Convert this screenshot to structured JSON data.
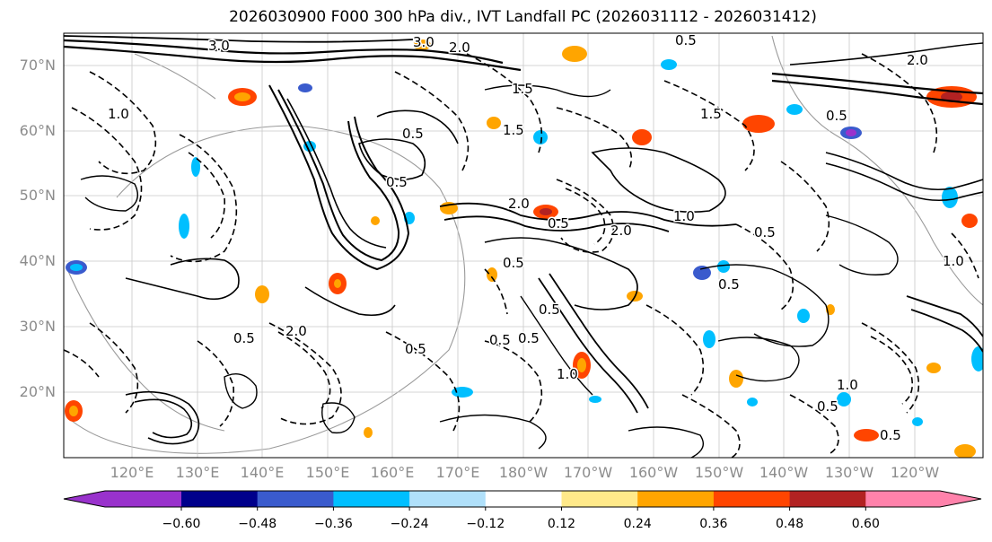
{
  "title": "2026030900 F000 300 hPa div., IVT Landfall PC (2026031112 - 2026031412)",
  "lat_labels": [
    "70°N",
    "60°N",
    "50°N",
    "40°N",
    "30°N",
    "20°N"
  ],
  "lon_labels": [
    "120°E",
    "130°E",
    "140°E",
    "150°E",
    "160°E",
    "170°E",
    "180°W",
    "170°W",
    "160°W",
    "150°W",
    "140°W",
    "130°W",
    "120°W"
  ],
  "colorbar": {
    "colors": [
      "#9932cc",
      "#00008b",
      "#3a5bcd",
      "#00bfff",
      "#b0e0fa",
      "#ffffff",
      "#ffe98a",
      "#ffa500",
      "#ff4500",
      "#b22222",
      "#ff82ab"
    ],
    "tick_labels": [
      "−0.60",
      "−0.48",
      "−0.36",
      "−0.24",
      "−0.12",
      "0.12",
      "0.24",
      "0.36",
      "0.48",
      "0.60"
    ]
  },
  "contour_labels": [
    "3.0",
    "3.0",
    "2.0",
    "0.5",
    "1.5",
    "0.5",
    "1.0",
    "1.5",
    "2.0",
    "1.5",
    "0.5",
    "0.5",
    "2.0",
    "0.5",
    "1.0",
    "2.0",
    "0.5",
    "0.5",
    "0.5",
    "0.5",
    "1.0",
    "2.0",
    "0.5",
    "0.5",
    "0.5",
    "0.5",
    "1.0",
    "1.0",
    "0.5",
    "0.5"
  ]
}
